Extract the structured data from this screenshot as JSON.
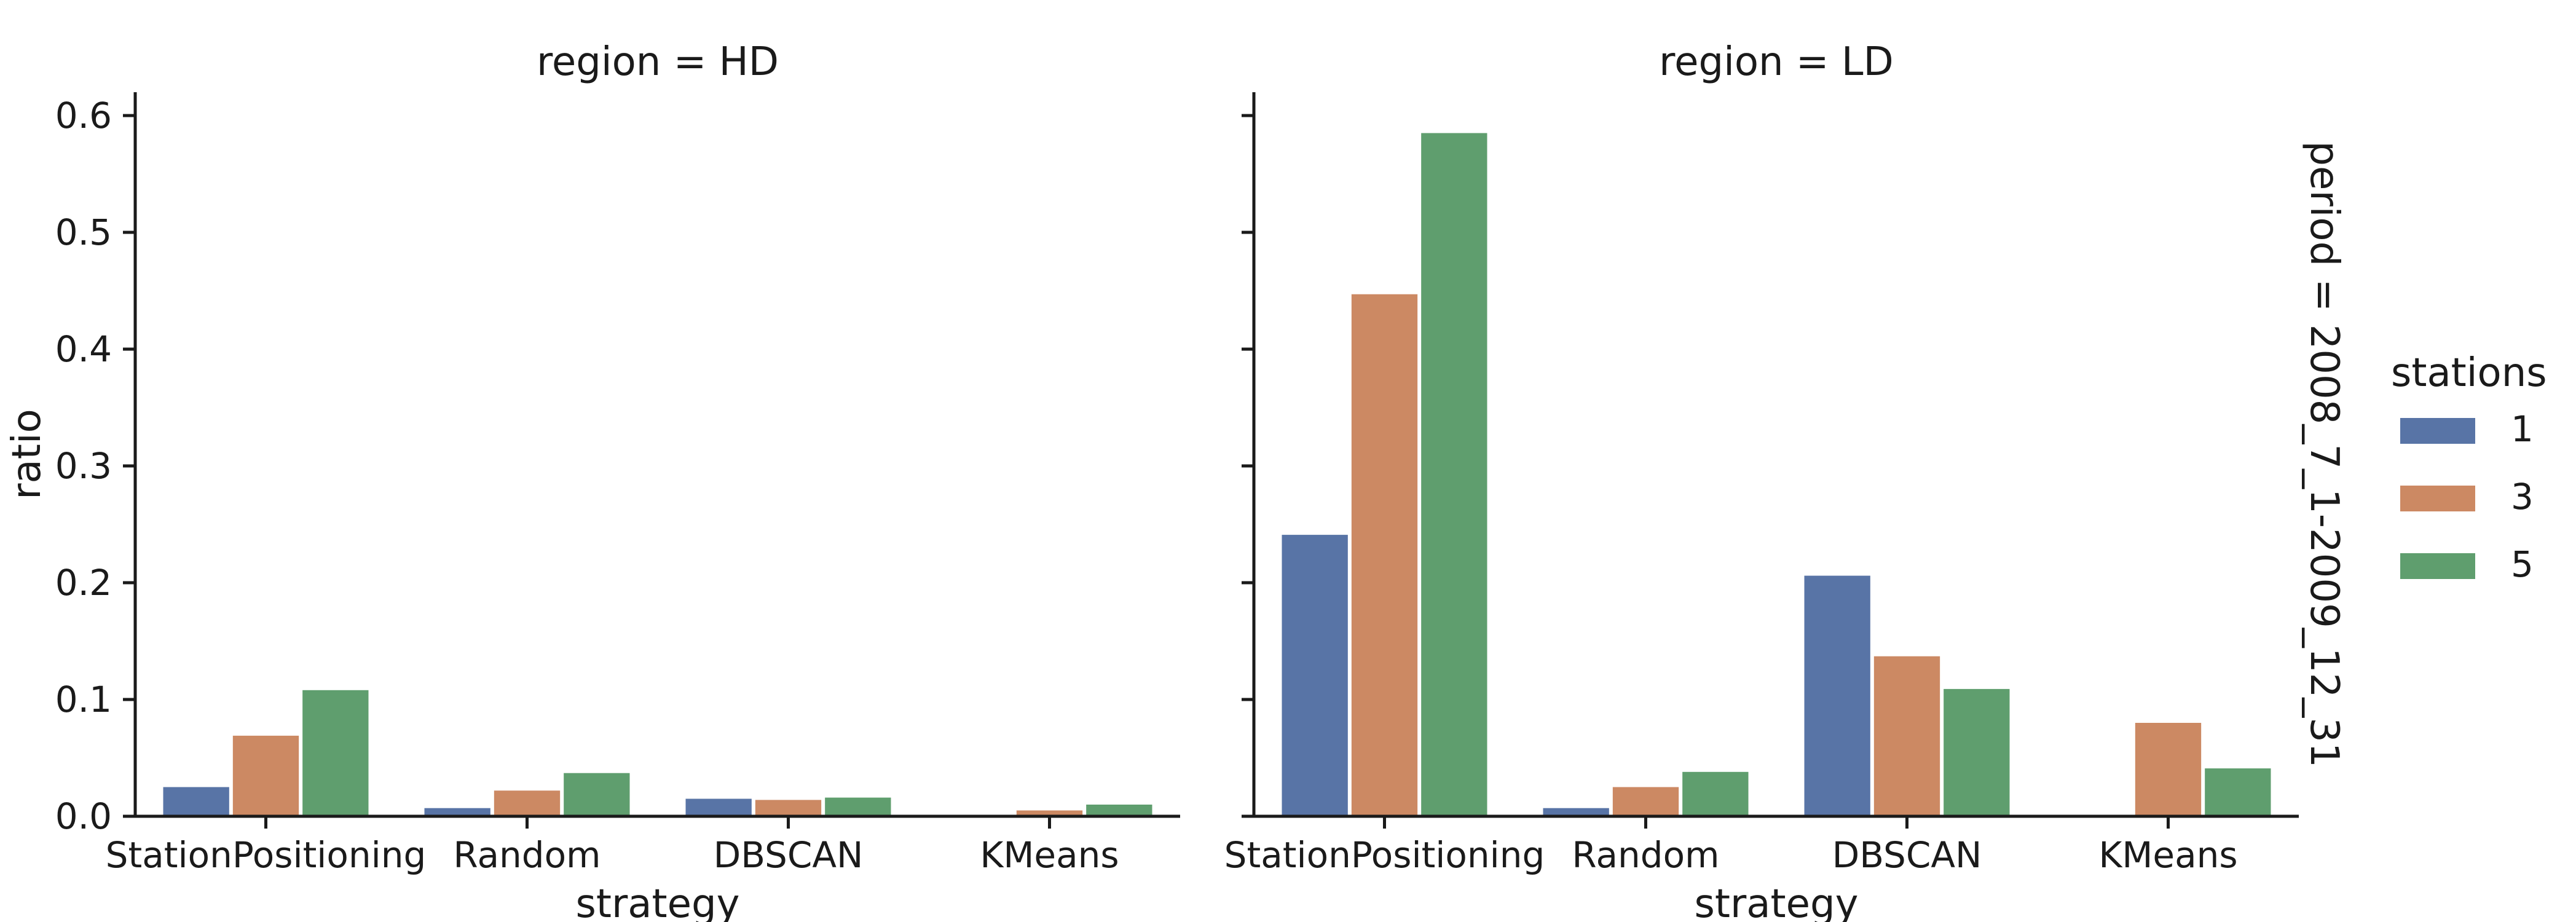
{
  "chart_data": {
    "type": "bar",
    "row_title": "period = 2008_7_1-2009_12_31",
    "xlabel": "strategy",
    "ylabel": "ratio",
    "ylim": [
      0,
      0.62
    ],
    "yticks": [
      "0.0",
      "0.1",
      "0.2",
      "0.3",
      "0.4",
      "0.5",
      "0.6"
    ],
    "categories": [
      "StationPositioning",
      "Random",
      "DBSCAN",
      "KMeans"
    ],
    "legend": {
      "title": "stations",
      "placement": "right",
      "entries": [
        {
          "label": "1",
          "color": "#5874a6"
        },
        {
          "label": "3",
          "color": "#cc8963"
        },
        {
          "label": "5",
          "color": "#5f9e6e"
        }
      ]
    },
    "facets": [
      {
        "title": "region = HD",
        "series": [
          {
            "name": "1",
            "values": [
              0.025,
              0.007,
              0.015,
              0.001
            ]
          },
          {
            "name": "3",
            "values": [
              0.069,
              0.022,
              0.014,
              0.005
            ]
          },
          {
            "name": "5",
            "values": [
              0.108,
              0.037,
              0.016,
              0.01
            ]
          }
        ]
      },
      {
        "title": "region = LD",
        "series": [
          {
            "name": "1",
            "values": [
              0.241,
              0.007,
              0.206,
              0
            ]
          },
          {
            "name": "3",
            "values": [
              0.447,
              0.025,
              0.137,
              0.08
            ]
          },
          {
            "name": "5",
            "values": [
              0.585,
              0.038,
              0.109,
              0.041
            ]
          }
        ]
      }
    ]
  }
}
